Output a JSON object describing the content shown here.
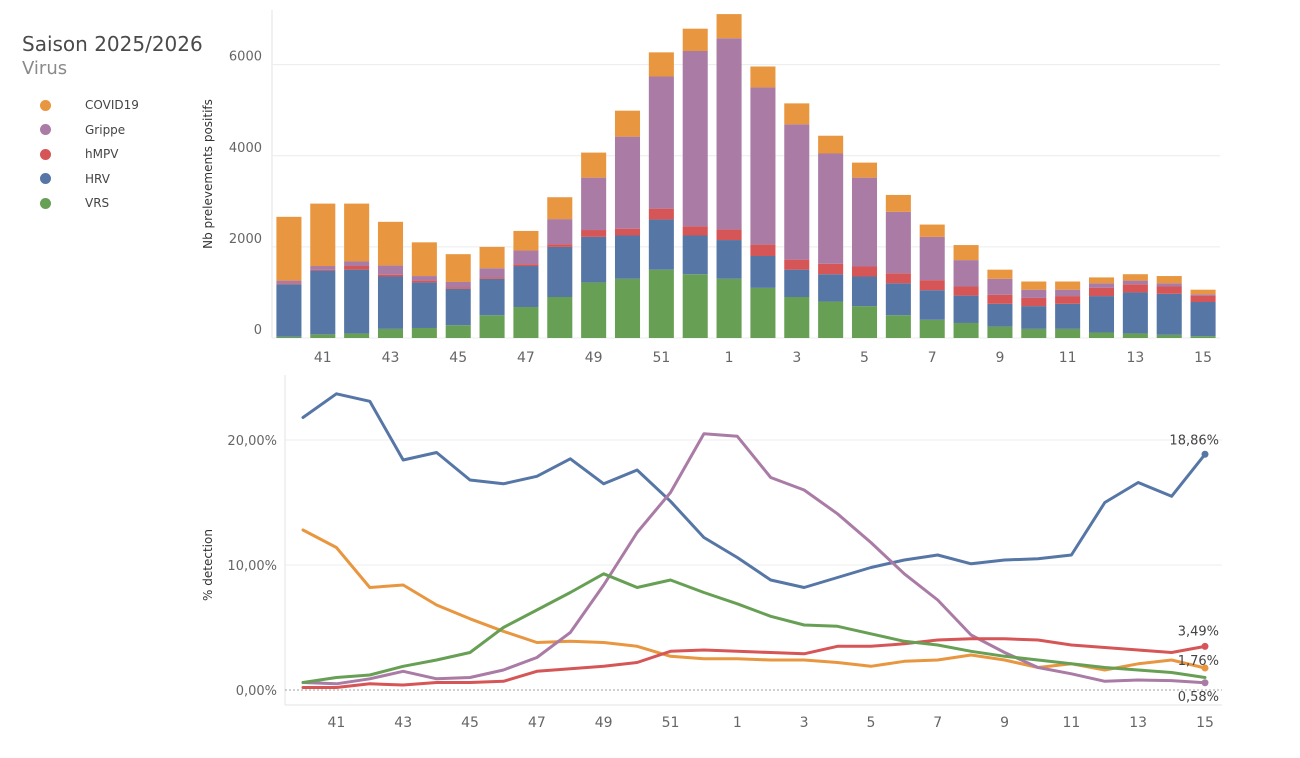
{
  "legend": {
    "title": "Saison 2025/2026",
    "subtitle": "Virus",
    "items": [
      {
        "label": "COVID19",
        "color": "#e8963f"
      },
      {
        "label": "Grippe",
        "color": "#a97ba5"
      },
      {
        "label": "hMPV",
        "color": "#d65556"
      },
      {
        "label": "HRV",
        "color": "#5676a6"
      },
      {
        "label": "VRS",
        "color": "#67a055"
      }
    ]
  },
  "chart_data": [
    {
      "type": "bar",
      "stacked": true,
      "title": "",
      "xlabel": "",
      "ylabel": "Nb prelevements positifs",
      "ylim": [
        0,
        7200
      ],
      "yticks": [
        0,
        2000,
        4000,
        6000
      ],
      "categories": [
        "40",
        "41",
        "42",
        "43",
        "44",
        "45",
        "46",
        "47",
        "48",
        "49",
        "50",
        "51",
        "52",
        "1",
        "2",
        "3",
        "4",
        "5",
        "6",
        "7",
        "8",
        "9",
        "10",
        "11",
        "12",
        "13",
        "14",
        "15"
      ],
      "xtick_labels": [
        "41",
        "43",
        "45",
        "47",
        "49",
        "51",
        "1",
        "3",
        "5",
        "7",
        "9",
        "11",
        "13",
        "15"
      ],
      "series": [
        {
          "name": "VRS",
          "color": "#67a055",
          "values": [
            30,
            80,
            100,
            200,
            220,
            280,
            500,
            680,
            900,
            1220,
            1300,
            1500,
            1400,
            1300,
            1100,
            900,
            800,
            700,
            500,
            400,
            330,
            250,
            200,
            200,
            120,
            100,
            70,
            40
          ]
        },
        {
          "name": "HRV",
          "color": "#5676a6",
          "values": [
            1150,
            1400,
            1400,
            1150,
            1000,
            800,
            800,
            900,
            1100,
            1000,
            950,
            1100,
            850,
            850,
            700,
            600,
            600,
            650,
            700,
            650,
            600,
            500,
            500,
            550,
            800,
            900,
            900,
            750
          ]
        },
        {
          "name": "hMPV",
          "color": "#d65556",
          "values": [
            20,
            20,
            80,
            40,
            40,
            30,
            30,
            40,
            60,
            150,
            150,
            240,
            200,
            230,
            250,
            220,
            230,
            220,
            220,
            220,
            200,
            200,
            180,
            170,
            180,
            180,
            160,
            140
          ]
        },
        {
          "name": "Grippe",
          "color": "#a97ba5",
          "values": [
            60,
            80,
            100,
            200,
            100,
            120,
            200,
            300,
            550,
            1150,
            2020,
            2900,
            3850,
            4200,
            3450,
            2970,
            2420,
            1950,
            1350,
            950,
            580,
            350,
            180,
            140,
            100,
            80,
            70,
            30
          ]
        },
        {
          "name": "COVID19",
          "color": "#e8963f",
          "values": [
            1400,
            1370,
            1270,
            960,
            740,
            610,
            470,
            430,
            480,
            550,
            570,
            530,
            490,
            530,
            460,
            460,
            390,
            330,
            370,
            270,
            330,
            200,
            180,
            180,
            130,
            140,
            160,
            100
          ]
        }
      ]
    },
    {
      "type": "line",
      "title": "",
      "xlabel": "",
      "ylabel": "% detection",
      "ylim": [
        0,
        25
      ],
      "yticks": [
        0,
        10,
        20
      ],
      "ytick_labels": [
        "0,00%",
        "10,00%",
        "20,00%"
      ],
      "x": [
        "40",
        "41",
        "42",
        "43",
        "44",
        "45",
        "46",
        "47",
        "48",
        "49",
        "50",
        "51",
        "52",
        "1",
        "2",
        "3",
        "4",
        "5",
        "6",
        "7",
        "8",
        "9",
        "10",
        "11",
        "12",
        "13",
        "14",
        "15"
      ],
      "xtick_labels": [
        "41",
        "43",
        "45",
        "47",
        "49",
        "51",
        "1",
        "3",
        "5",
        "7",
        "9",
        "11",
        "13",
        "15"
      ],
      "series": [
        {
          "name": "HRV",
          "color": "#5676a6",
          "values": [
            21.8,
            23.7,
            23.1,
            18.4,
            19.0,
            16.8,
            16.5,
            17.1,
            18.5,
            16.5,
            17.6,
            15.1,
            12.2,
            10.6,
            8.8,
            8.2,
            9.0,
            9.8,
            10.4,
            10.8,
            10.1,
            10.4,
            10.5,
            10.8,
            15.0,
            16.6,
            15.5,
            18.86
          ],
          "end_label": "18,86%"
        },
        {
          "name": "COVID19",
          "color": "#e8963f",
          "values": [
            12.8,
            11.4,
            8.2,
            8.4,
            6.8,
            5.7,
            4.7,
            3.8,
            3.9,
            3.8,
            3.5,
            2.7,
            2.5,
            2.5,
            2.4,
            2.4,
            2.2,
            1.9,
            2.3,
            2.4,
            2.8,
            2.4,
            1.8,
            2.1,
            1.6,
            2.1,
            2.4,
            1.76
          ],
          "end_label": "1,76%"
        },
        {
          "name": "Grippe",
          "color": "#a97ba5",
          "values": [
            0.6,
            0.5,
            0.9,
            1.5,
            0.9,
            1.0,
            1.6,
            2.6,
            4.6,
            8.4,
            12.6,
            15.8,
            20.5,
            20.3,
            17.0,
            16.0,
            14.1,
            11.8,
            9.3,
            7.2,
            4.4,
            3.0,
            1.8,
            1.3,
            0.7,
            0.8,
            0.75,
            0.58
          ],
          "end_label": "0,58%"
        },
        {
          "name": "hMPV",
          "color": "#d65556",
          "values": [
            0.2,
            0.2,
            0.5,
            0.4,
            0.6,
            0.6,
            0.7,
            1.5,
            1.7,
            1.9,
            2.2,
            3.1,
            3.2,
            3.1,
            3.0,
            2.9,
            3.5,
            3.5,
            3.7,
            4.0,
            4.1,
            4.1,
            4.0,
            3.6,
            3.4,
            3.2,
            3.0,
            3.49
          ],
          "end_label": "3,49%"
        },
        {
          "name": "VRS",
          "color": "#67a055",
          "values": [
            0.6,
            1.0,
            1.2,
            1.9,
            2.4,
            3.0,
            5.0,
            6.4,
            7.8,
            9.3,
            8.2,
            8.8,
            7.8,
            6.9,
            5.9,
            5.2,
            5.1,
            4.5,
            3.9,
            3.6,
            3.1,
            2.7,
            2.4,
            2.1,
            1.8,
            1.6,
            1.4,
            1.0
          ]
        }
      ]
    }
  ]
}
